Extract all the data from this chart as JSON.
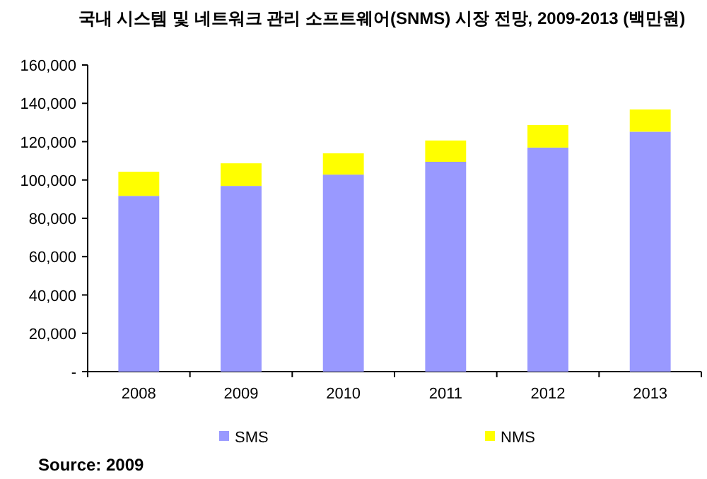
{
  "chart_data": {
    "type": "bar",
    "title": "국내 시스템 및 네트워크 관리 소프트웨어(SNMS) 시장 전망, 2009-2013 (백만원)",
    "categories": [
      "2008",
      "2009",
      "2010",
      "2011",
      "2012",
      "2013"
    ],
    "stacked": true,
    "series": [
      {
        "name": "SMS",
        "color": "#9999ff",
        "values": [
          91700,
          96900,
          102800,
          109500,
          116900,
          125200
        ]
      },
      {
        "name": "NMS",
        "color": "#ffff00",
        "values": [
          12600,
          11800,
          11100,
          11100,
          11800,
          11600
        ]
      }
    ],
    "ylim": [
      0,
      160000
    ],
    "yticks": [
      {
        "value": 0,
        "label": "-"
      },
      {
        "value": 20000,
        "label": "20,000"
      },
      {
        "value": 40000,
        "label": "40,000"
      },
      {
        "value": 60000,
        "label": "60,000"
      },
      {
        "value": 80000,
        "label": "80,000"
      },
      {
        "value": 100000,
        "label": "100,000"
      },
      {
        "value": 120000,
        "label": "120,000"
      },
      {
        "value": 140000,
        "label": "140,000"
      },
      {
        "value": 160000,
        "label": "160,000"
      }
    ],
    "legend": "bottom",
    "grid": false,
    "annotations": [
      "Source: 2009"
    ]
  }
}
